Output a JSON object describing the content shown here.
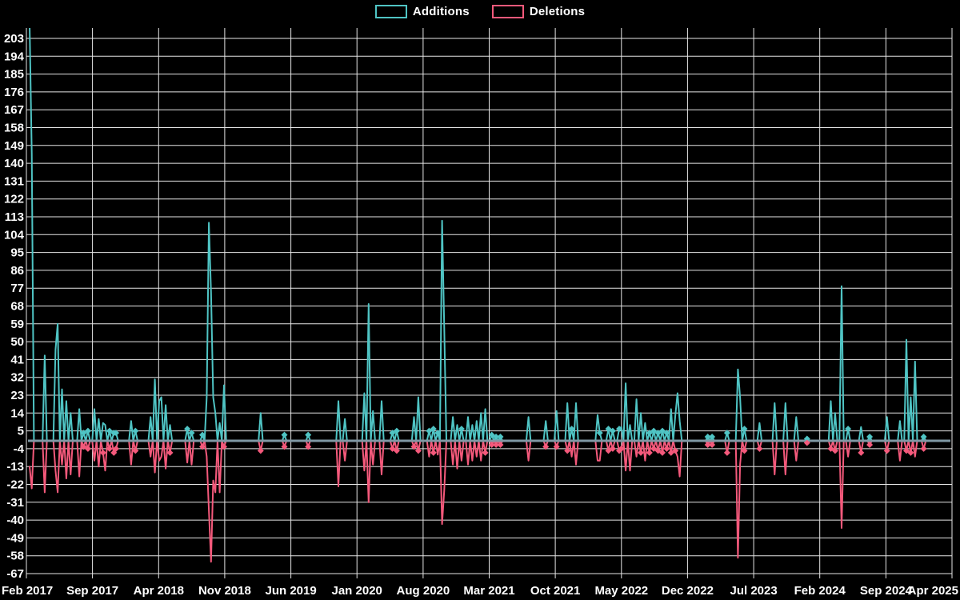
{
  "legend": {
    "items": [
      {
        "label": "Additions",
        "color": "#4fc4c4"
      },
      {
        "label": "Deletions",
        "color": "#f4597b"
      }
    ]
  },
  "chart_data": {
    "type": "line",
    "title": "",
    "xlabel": "",
    "ylabel": "",
    "background": "#000000",
    "grid_color": "#e6e6e6",
    "text_color": "#ffffff",
    "zero_line_color": "#7f98a4",
    "legend_position": "top-center",
    "grid": true,
    "ylim": [
      -67,
      208
    ],
    "y_ticks": [
      203,
      194,
      185,
      176,
      167,
      158,
      149,
      140,
      131,
      122,
      113,
      104,
      95,
      86,
      77,
      68,
      59,
      50,
      41,
      32,
      23,
      14,
      5,
      -4,
      -13,
      -22,
      -31,
      -40,
      -49,
      -58,
      -67
    ],
    "x_ticks": [
      "Feb 2017",
      "Sep 2017",
      "Apr 2018",
      "Nov 2018",
      "Jun 2019",
      "Jan 2020",
      "Aug 2020",
      "Mar 2021",
      "Oct 2021",
      "May 2022",
      "Dec 2022",
      "Jul 2023",
      "Feb 2024",
      "Sep 2024",
      "Apr 2025"
    ],
    "x_interval": "weekly",
    "x_start": "Feb 2017",
    "x_end": "Apr 2025",
    "n_points": 427,
    "first_point_clipped_at_top": true,
    "series": [
      {
        "name": "Additions",
        "color": "#4fc4c4",
        "default_value": 0,
        "sparse_points": [
          [
            0,
            210
          ],
          [
            1,
            145
          ],
          [
            7,
            43
          ],
          [
            12,
            46
          ],
          [
            13,
            59
          ],
          [
            15,
            26
          ],
          [
            17,
            20
          ],
          [
            19,
            14
          ],
          [
            23,
            16
          ],
          [
            25,
            4
          ],
          [
            27,
            5
          ],
          [
            30,
            16
          ],
          [
            32,
            11
          ],
          [
            34,
            9
          ],
          [
            35,
            8
          ],
          [
            37,
            5
          ],
          [
            39,
            4
          ],
          [
            40,
            4
          ],
          [
            47,
            10
          ],
          [
            49,
            5
          ],
          [
            56,
            12
          ],
          [
            58,
            31
          ],
          [
            60,
            20
          ],
          [
            61,
            22
          ],
          [
            63,
            18
          ],
          [
            65,
            8
          ],
          [
            73,
            6
          ],
          [
            75,
            4
          ],
          [
            80,
            3
          ],
          [
            82,
            22
          ],
          [
            83,
            110
          ],
          [
            84,
            75
          ],
          [
            85,
            22
          ],
          [
            86,
            14
          ],
          [
            88,
            9
          ],
          [
            90,
            28
          ],
          [
            107,
            14
          ],
          [
            118,
            3
          ],
          [
            129,
            3
          ],
          [
            143,
            20
          ],
          [
            146,
            11
          ],
          [
            155,
            24
          ],
          [
            157,
            69
          ],
          [
            159,
            15
          ],
          [
            163,
            20
          ],
          [
            168,
            4
          ],
          [
            170,
            5
          ],
          [
            178,
            12
          ],
          [
            180,
            22
          ],
          [
            185,
            5
          ],
          [
            187,
            6
          ],
          [
            189,
            4
          ],
          [
            191,
            111
          ],
          [
            192,
            57
          ],
          [
            196,
            12
          ],
          [
            198,
            8
          ],
          [
            200,
            6
          ],
          [
            203,
            12
          ],
          [
            205,
            8
          ],
          [
            207,
            10
          ],
          [
            209,
            14
          ],
          [
            211,
            16
          ],
          [
            214,
            3
          ],
          [
            216,
            2
          ],
          [
            218,
            2
          ],
          [
            231,
            12
          ],
          [
            239,
            10
          ],
          [
            244,
            15
          ],
          [
            249,
            19
          ],
          [
            251,
            6
          ],
          [
            253,
            19
          ],
          [
            263,
            13
          ],
          [
            264,
            4
          ],
          [
            268,
            6
          ],
          [
            270,
            5
          ],
          [
            273,
            6
          ],
          [
            274,
            7
          ],
          [
            276,
            29
          ],
          [
            278,
            8
          ],
          [
            281,
            21
          ],
          [
            283,
            14
          ],
          [
            285,
            9
          ],
          [
            287,
            4
          ],
          [
            289,
            5
          ],
          [
            291,
            4
          ],
          [
            293,
            5
          ],
          [
            295,
            4
          ],
          [
            297,
            16
          ],
          [
            299,
            13
          ],
          [
            300,
            24
          ],
          [
            301,
            10
          ],
          [
            314,
            2
          ],
          [
            316,
            2
          ],
          [
            323,
            4
          ],
          [
            328,
            36
          ],
          [
            329,
            22
          ],
          [
            331,
            6
          ],
          [
            338,
            9
          ],
          [
            345,
            19
          ],
          [
            350,
            19
          ],
          [
            355,
            12
          ],
          [
            360,
            1
          ],
          [
            371,
            20
          ],
          [
            373,
            14
          ],
          [
            376,
            78
          ],
          [
            379,
            6
          ],
          [
            385,
            7
          ],
          [
            389,
            2
          ],
          [
            397,
            12
          ],
          [
            403,
            10
          ],
          [
            406,
            51
          ],
          [
            408,
            22
          ],
          [
            410,
            40
          ],
          [
            414,
            2
          ]
        ]
      },
      {
        "name": "Deletions",
        "color": "#f4597b",
        "default_value": 0,
        "sparse_points": [
          [
            0,
            -13
          ],
          [
            1,
            -24
          ],
          [
            7,
            -26
          ],
          [
            12,
            -15
          ],
          [
            13,
            -26
          ],
          [
            15,
            -12
          ],
          [
            17,
            -19
          ],
          [
            19,
            -17
          ],
          [
            23,
            -18
          ],
          [
            25,
            -3
          ],
          [
            27,
            -4
          ],
          [
            30,
            -10
          ],
          [
            32,
            -13
          ],
          [
            34,
            -6
          ],
          [
            35,
            -15
          ],
          [
            37,
            -4
          ],
          [
            39,
            -6
          ],
          [
            40,
            -4
          ],
          [
            47,
            -12
          ],
          [
            49,
            -5
          ],
          [
            56,
            -8
          ],
          [
            58,
            -16
          ],
          [
            60,
            -10
          ],
          [
            61,
            -8
          ],
          [
            63,
            -14
          ],
          [
            65,
            -6
          ],
          [
            73,
            -11
          ],
          [
            75,
            -12
          ],
          [
            80,
            -3
          ],
          [
            82,
            -8
          ],
          [
            83,
            -35
          ],
          [
            84,
            -61
          ],
          [
            85,
            -20
          ],
          [
            86,
            -26
          ],
          [
            88,
            -26
          ],
          [
            90,
            -3
          ],
          [
            107,
            -5
          ],
          [
            118,
            -3
          ],
          [
            129,
            -3
          ],
          [
            143,
            -23
          ],
          [
            146,
            -10
          ],
          [
            155,
            -15
          ],
          [
            157,
            -31
          ],
          [
            159,
            -12
          ],
          [
            163,
            -17
          ],
          [
            168,
            -4
          ],
          [
            170,
            -5
          ],
          [
            178,
            -3
          ],
          [
            180,
            -5
          ],
          [
            185,
            -8
          ],
          [
            187,
            -6
          ],
          [
            189,
            -7
          ],
          [
            191,
            -42
          ],
          [
            192,
            -25
          ],
          [
            196,
            -12
          ],
          [
            198,
            -14
          ],
          [
            200,
            -10
          ],
          [
            203,
            -12
          ],
          [
            205,
            -10
          ],
          [
            207,
            -8
          ],
          [
            209,
            -10
          ],
          [
            211,
            -6
          ],
          [
            214,
            -2
          ],
          [
            216,
            -2
          ],
          [
            218,
            -2
          ],
          [
            231,
            -10
          ],
          [
            239,
            -3
          ],
          [
            244,
            -3
          ],
          [
            249,
            -5
          ],
          [
            251,
            -8
          ],
          [
            253,
            -12
          ],
          [
            263,
            -10
          ],
          [
            264,
            -10
          ],
          [
            268,
            -5
          ],
          [
            270,
            -4
          ],
          [
            273,
            -5
          ],
          [
            274,
            -4
          ],
          [
            276,
            -15
          ],
          [
            278,
            -15
          ],
          [
            281,
            -8
          ],
          [
            283,
            -6
          ],
          [
            285,
            -10
          ],
          [
            287,
            -6
          ],
          [
            289,
            -4
          ],
          [
            291,
            -5
          ],
          [
            293,
            -6
          ],
          [
            295,
            -4
          ],
          [
            297,
            -6
          ],
          [
            299,
            -5
          ],
          [
            300,
            -8
          ],
          [
            301,
            -18
          ],
          [
            314,
            -2
          ],
          [
            316,
            -2
          ],
          [
            323,
            -6
          ],
          [
            328,
            -59
          ],
          [
            329,
            -12
          ],
          [
            331,
            -5
          ],
          [
            338,
            -4
          ],
          [
            345,
            -17
          ],
          [
            350,
            -17
          ],
          [
            355,
            -10
          ],
          [
            360,
            -1
          ],
          [
            371,
            -4
          ],
          [
            373,
            -5
          ],
          [
            376,
            -44
          ],
          [
            379,
            -8
          ],
          [
            385,
            -6
          ],
          [
            389,
            -2
          ],
          [
            397,
            -5
          ],
          [
            403,
            -10
          ],
          [
            406,
            -5
          ],
          [
            408,
            -6
          ],
          [
            410,
            -8
          ],
          [
            414,
            -4
          ]
        ]
      }
    ]
  }
}
